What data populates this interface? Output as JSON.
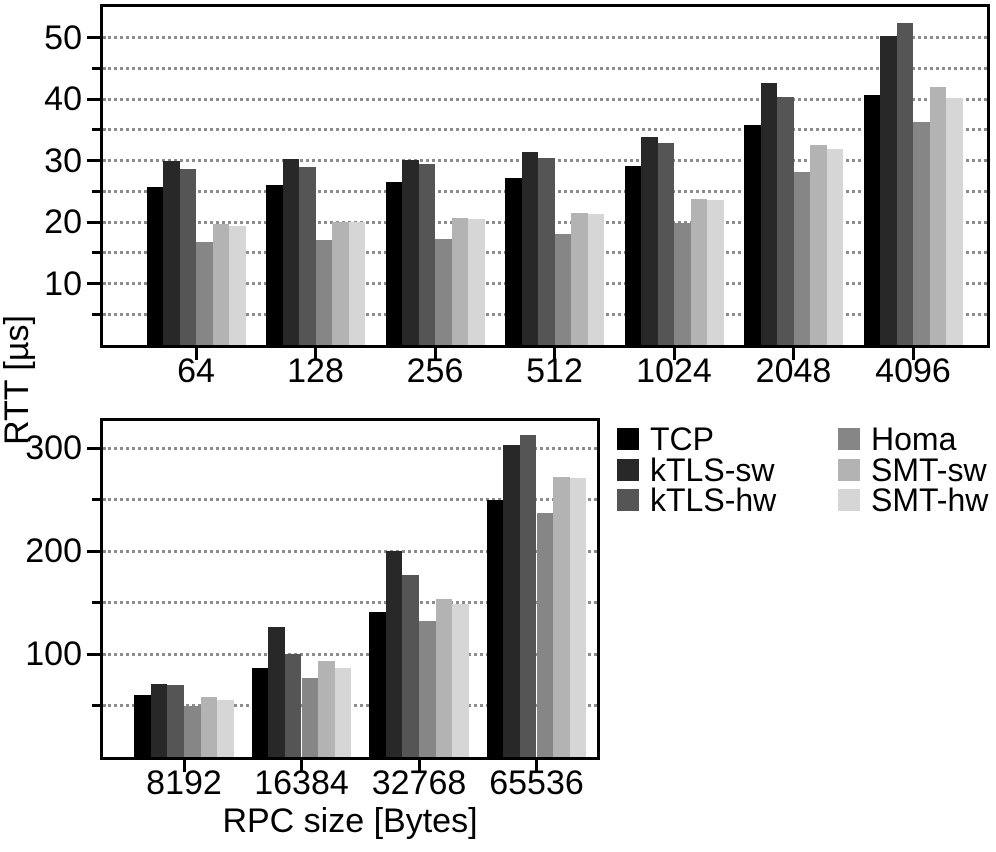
{
  "figure": {
    "ylabel": "RTT [µs]",
    "xlabel": "RPC size [Bytes]",
    "background_color": "#ffffff",
    "axis_color": "#000000",
    "grid_color": "#8c8c8c"
  },
  "legend": {
    "position": "right-of-bottom-panel",
    "columns": [
      [
        {
          "label": "TCP",
          "color": "#000000"
        },
        {
          "label": "kTLS-sw",
          "color": "#282828"
        },
        {
          "label": "kTLS-hw",
          "color": "#555555"
        }
      ],
      [
        {
          "label": "Homa",
          "color": "#868686"
        },
        {
          "label": "SMT-sw",
          "color": "#b3b3b3"
        },
        {
          "label": "SMT-hw",
          "color": "#d6d6d6"
        }
      ]
    ]
  },
  "chart_data": [
    {
      "type": "bar",
      "panel": "top",
      "title": "",
      "xlabel": "",
      "ylabel": "RTT [µs]",
      "categories": [
        "64",
        "128",
        "256",
        "512",
        "1024",
        "2048",
        "4096"
      ],
      "series": [
        {
          "name": "TCP",
          "color": "#000000",
          "values": [
            25.7,
            26.0,
            26.5,
            27.1,
            29.1,
            35.7,
            40.7
          ]
        },
        {
          "name": "kTLS-sw",
          "color": "#282828",
          "values": [
            30.0,
            30.2,
            30.1,
            31.4,
            33.8,
            42.6,
            50.2
          ]
        },
        {
          "name": "kTLS-hw",
          "color": "#555555",
          "values": [
            28.6,
            29.0,
            29.4,
            30.4,
            32.8,
            40.4,
            52.3
          ]
        },
        {
          "name": "Homa",
          "color": "#868686",
          "values": [
            16.7,
            17.0,
            17.2,
            18.1,
            19.8,
            28.2,
            36.2
          ]
        },
        {
          "name": "SMT-sw",
          "color": "#b3b3b3",
          "values": [
            19.6,
            20.0,
            20.6,
            21.5,
            23.8,
            32.5,
            41.9
          ]
        },
        {
          "name": "SMT-hw",
          "color": "#d6d6d6",
          "values": [
            19.4,
            20.0,
            20.5,
            21.3,
            23.5,
            31.8,
            40.2
          ]
        }
      ],
      "ylim": [
        0,
        55
      ],
      "yticks": [
        10,
        20,
        30,
        40,
        50
      ],
      "minor_ytick_step": 5,
      "grid": {
        "axis": "y",
        "step": 5,
        "style": "dotted",
        "on": true
      },
      "legend_shown": false
    },
    {
      "type": "bar",
      "panel": "bottom",
      "title": "",
      "xlabel": "RPC size [Bytes]",
      "ylabel": "RTT [µs]",
      "categories": [
        "8192",
        "16384",
        "32768",
        "65536"
      ],
      "series": [
        {
          "name": "TCP",
          "color": "#000000",
          "values": [
            60,
            86,
            141,
            250
          ]
        },
        {
          "name": "kTLS-sw",
          "color": "#282828",
          "values": [
            71,
            126,
            200,
            303
          ]
        },
        {
          "name": "kTLS-hw",
          "color": "#555555",
          "values": [
            70,
            100,
            177,
            313
          ]
        },
        {
          "name": "Homa",
          "color": "#868686",
          "values": [
            50,
            77,
            132,
            237
          ]
        },
        {
          "name": "SMT-sw",
          "color": "#b3b3b3",
          "values": [
            58,
            93,
            153,
            272
          ]
        },
        {
          "name": "SMT-hw",
          "color": "#d6d6d6",
          "values": [
            55,
            86,
            149,
            271
          ]
        }
      ],
      "ylim": [
        0,
        329
      ],
      "yticks": [
        100,
        200,
        300
      ],
      "minor_ytick_step": 50,
      "grid": {
        "axis": "y",
        "step": 50,
        "style": "dotted",
        "on": true
      },
      "legend_shown": true
    }
  ]
}
